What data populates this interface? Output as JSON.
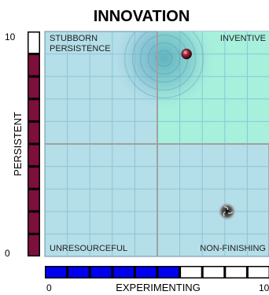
{
  "chart_data": {
    "type": "scatter",
    "title": "INNOVATION",
    "xlabel": "EXPERIMENTING",
    "ylabel": "PERSISTENT",
    "xlim": [
      0,
      10
    ],
    "ylim": [
      0,
      10
    ],
    "x_ticks": [
      "0",
      "10"
    ],
    "y_ticks": [
      "0",
      "10"
    ],
    "quadrants": {
      "top_left": [
        "STUBBORN",
        "PERSISTENCE"
      ],
      "top_right": "INVENTIVE",
      "bottom_left": "UNRESOURCEFUL",
      "bottom_right": "NON-FINISHING"
    },
    "points": [
      {
        "x": 6.3,
        "y": 9.0,
        "marker": "ball"
      },
      {
        "x": 8.1,
        "y": 2.0,
        "marker": "swirl"
      }
    ],
    "cloud": {
      "x": 5.3,
      "y": 8.8
    },
    "x_bar_level": 6,
    "y_bar_level": 9,
    "colors": {
      "plot_bg": "#b4dee8",
      "highlight": "#a6f0dc",
      "x_bar": "#0000ee",
      "y_bar": "#7d0f3c",
      "grid": "#8cc6d8",
      "mid_line": "#a0a0a0"
    }
  }
}
